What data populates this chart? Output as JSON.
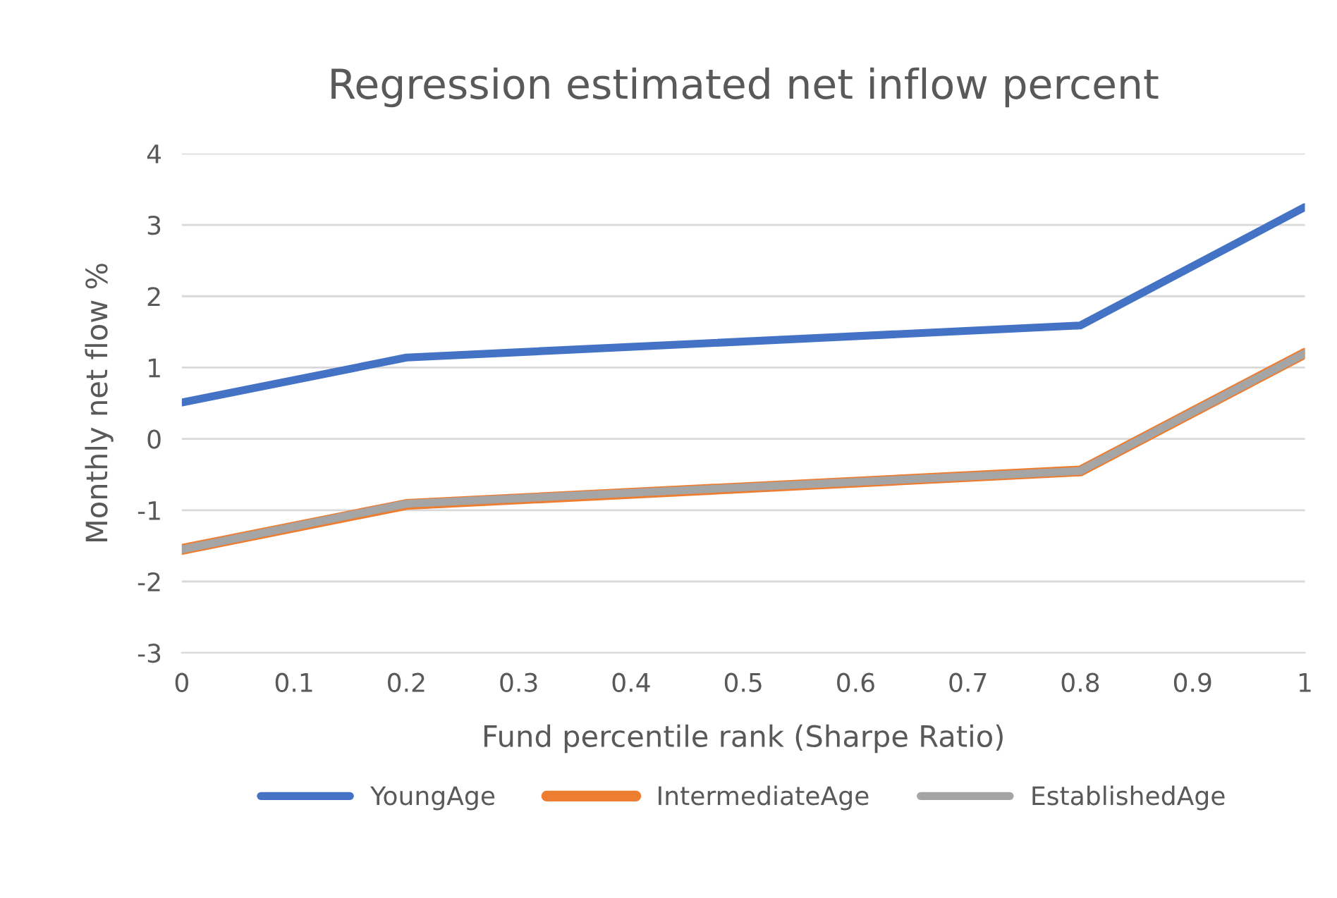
{
  "chart_data": {
    "type": "line",
    "title": "Regression estimated net inflow percent",
    "xlabel": "Fund percentile rank (Sharpe Ratio)",
    "ylabel": "Monthly net flow %",
    "x": [
      0,
      0.2,
      0.8,
      1
    ],
    "series": [
      {
        "name": "YoungAge",
        "color": "#4472c4",
        "values": [
          0.51,
          1.14,
          1.59,
          3.25
        ]
      },
      {
        "name": "IntermediateAge",
        "color": "#ed7d31",
        "values": [
          -1.55,
          -0.92,
          -0.45,
          1.2
        ]
      },
      {
        "name": "EstablishedAge",
        "color": "#a5a5a5",
        "values": [
          -1.55,
          -0.91,
          -0.45,
          1.2
        ]
      }
    ],
    "xlim": [
      0,
      1
    ],
    "xticks": [
      0,
      0.1,
      0.2,
      0.3,
      0.4,
      0.5,
      0.6,
      0.7,
      0.8,
      0.9,
      1
    ],
    "ylim": [
      -3,
      4
    ],
    "yticks": [
      -3,
      -2,
      -1,
      0,
      1,
      2,
      3,
      4
    ],
    "grid": "y",
    "legend": "bottom",
    "marker": "none",
    "line_style": "solid"
  }
}
